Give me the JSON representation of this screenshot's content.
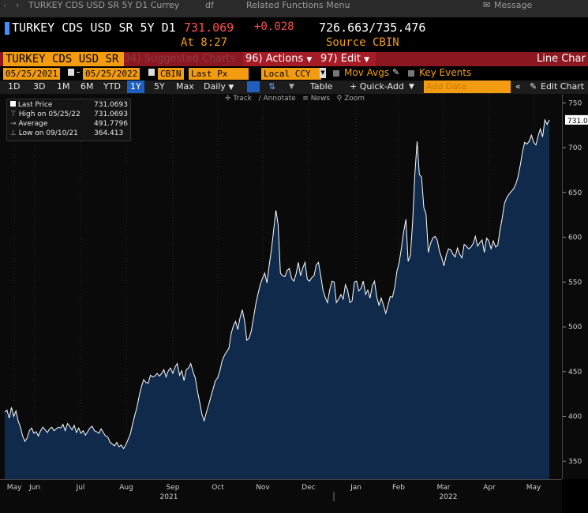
{
  "menubar": {
    "title": "TURKEY CDS USD SR 5Y D1 Currey",
    "item2": "df",
    "item3": "Related Functions Menu",
    "message": "Message"
  },
  "headline": {
    "security": "TURKEY CDS USD SR 5Y D1",
    "last": "731.069",
    "change": "+0.028",
    "bid_ask": "726.663/735.476",
    "time_label": "At 8:27",
    "source_label": "Source CBIN"
  },
  "toolbar": {
    "security_short": "TURKEY CDS USD SR",
    "suggested": "94) Suggested Charts",
    "actions": "96) Actions",
    "edit": "97) Edit",
    "chart_type": "Line Char"
  },
  "row3": {
    "start_date": "05/25/2021",
    "end_date": "05/25/2022",
    "source": "CBIN",
    "field": "Last Px",
    "currency": "Local CCY",
    "mov_avgs": "Mov Avgs",
    "key_events": "Key Events"
  },
  "row4": {
    "ranges": [
      "1D",
      "3D",
      "1M",
      "6M",
      "YTD",
      "1Y",
      "5Y",
      "Max"
    ],
    "active_range": "1Y",
    "frequency": "Daily",
    "table": "Table",
    "quick_add": "+ Quick-Add",
    "add_data_placeholder": "Add Data",
    "edit_chart": "Edit Chart"
  },
  "subtools": {
    "track": "Track",
    "annotate": "Annotate",
    "news": "News",
    "zoom": "Zoom"
  },
  "legend": {
    "last_price_label": "Last Price",
    "last_price_value": "731.0693",
    "high_label": "High on 05/25/22",
    "high_value": "731.0693",
    "avg_label": "Average",
    "avg_value": "491.7796",
    "low_label": "Low on 09/10/21",
    "low_value": "364.413"
  },
  "colors": {
    "accent_orange": "#f39c12",
    "series_fill": "#0f2a4a",
    "series_line": "#ffffff",
    "change_red": "#ff4d4d"
  },
  "chart_data": {
    "type": "area",
    "ylim": [
      330,
      760
    ],
    "yticks": [
      350,
      400,
      450,
      500,
      550,
      600,
      650,
      700,
      750
    ],
    "xticks": [
      "May",
      "Jun",
      "Jul",
      "Aug",
      "Sep",
      "Oct",
      "Nov",
      "Dec",
      "Jan",
      "Feb",
      "Mar",
      "Apr",
      "May"
    ],
    "year_labels": [
      "2021",
      "2022"
    ],
    "last_value_label": "731.0",
    "series": [
      {
        "name": "Last Price",
        "values": [
          405,
          407,
          398,
          410,
          400,
          406,
          395,
          388,
          378,
          372,
          376,
          384,
          387,
          381,
          383,
          378,
          384,
          388,
          385,
          382,
          386,
          388,
          384,
          386,
          388,
          387,
          391,
          384,
          392,
          389,
          385,
          390,
          382,
          387,
          381,
          384,
          379,
          383,
          387,
          389,
          384,
          383,
          381,
          386,
          382,
          378,
          377,
          371,
          369,
          367,
          371,
          366,
          368,
          364,
          368,
          374,
          380,
          391,
          401,
          410,
          423,
          433,
          441,
          438,
          437,
          446,
          444,
          445,
          448,
          445,
          448,
          452,
          444,
          451,
          454,
          448,
          455,
          459,
          446,
          451,
          440,
          452,
          454,
          459,
          450,
          443,
          428,
          416,
          402,
          395,
          405,
          413,
          422,
          431,
          440,
          443,
          451,
          462,
          468,
          472,
          476,
          492,
          501,
          506,
          497,
          510,
          519,
          507,
          485,
          487,
          495,
          510,
          525,
          537,
          547,
          554,
          560,
          549,
          569,
          586,
          608,
          630,
          614,
          560,
          557,
          556,
          563,
          565,
          554,
          551,
          559,
          572,
          557,
          566,
          572,
          553,
          551,
          555,
          557,
          569,
          572,
          557,
          541,
          533,
          527,
          541,
          551,
          550,
          527,
          531,
          536,
          531,
          547,
          541,
          527,
          529,
          550,
          551,
          540,
          543,
          551,
          536,
          541,
          532,
          546,
          551,
          533,
          524,
          532,
          524,
          515,
          524,
          534,
          533,
          544,
          562,
          572,
          588,
          606,
          620,
          573,
          580,
          617,
          670,
          707,
          670,
          667,
          633,
          626,
          583,
          593,
          599,
          601,
          597,
          584,
          577,
          568,
          580,
          587,
          586,
          581,
          578,
          588,
          581,
          577,
          592,
          590,
          587,
          589,
          593,
          601,
          590,
          594,
          597,
          583,
          599,
          596,
          587,
          596,
          589,
          591,
          608,
          622,
          638,
          644,
          648,
          651,
          654,
          659,
          667,
          680,
          695,
          706,
          704,
          707,
          714,
          706,
          703,
          713,
          721,
          712,
          731,
          726,
          731
        ]
      }
    ]
  }
}
